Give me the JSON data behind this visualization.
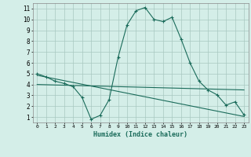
{
  "xlabel": "Humidex (Indice chaleur)",
  "bg_color": "#d4eee8",
  "grid_color": "#a8c8c0",
  "line_color": "#1a6b5a",
  "xlim": [
    -0.5,
    23.5
  ],
  "ylim": [
    0.5,
    11.5
  ],
  "xticks": [
    0,
    1,
    2,
    3,
    4,
    5,
    6,
    7,
    8,
    9,
    10,
    11,
    12,
    13,
    14,
    15,
    16,
    17,
    18,
    19,
    20,
    21,
    22,
    23
  ],
  "yticks": [
    1,
    2,
    3,
    4,
    5,
    6,
    7,
    8,
    9,
    10,
    11
  ],
  "curve1_x": [
    0,
    1,
    2,
    3,
    4,
    5,
    6,
    7,
    8,
    9,
    10,
    11,
    12,
    13,
    14,
    15,
    16,
    17,
    18,
    19,
    20,
    21,
    22,
    23
  ],
  "curve1_y": [
    5.0,
    4.7,
    4.3,
    4.1,
    3.8,
    2.8,
    0.8,
    1.15,
    2.6,
    6.5,
    9.5,
    10.8,
    11.1,
    10.0,
    9.8,
    10.2,
    8.2,
    6.0,
    4.3,
    3.5,
    3.05,
    2.1,
    2.4,
    1.2
  ],
  "curve2_x": [
    0,
    23
  ],
  "curve2_y": [
    4.85,
    1.05
  ],
  "curve3_x": [
    0,
    23
  ],
  "curve3_y": [
    4.0,
    3.5
  ]
}
